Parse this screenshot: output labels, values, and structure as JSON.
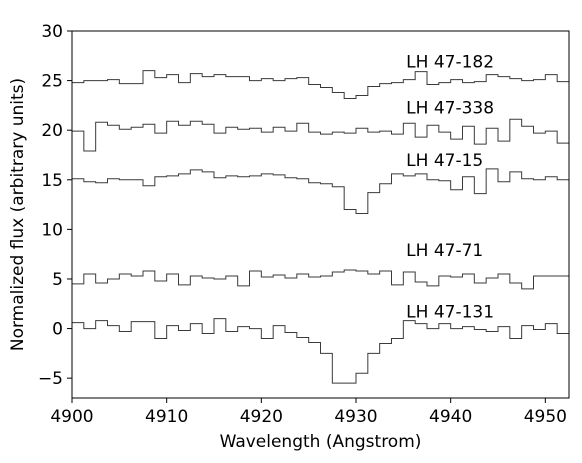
{
  "chart_data": {
    "type": "line",
    "step": true,
    "xlabel": "Wavelength (Angstrom)",
    "ylabel": "Normalized flux (arbitrary units)",
    "xlim": [
      4900,
      4952.5
    ],
    "ylim": [
      -7,
      30
    ],
    "xticks": [
      4900,
      4910,
      4920,
      4930,
      4940,
      4950
    ],
    "yticks": [
      -5,
      0,
      5,
      10,
      15,
      20,
      25,
      30
    ],
    "ytick_labels": [
      "−5",
      "0",
      "5",
      "10",
      "15",
      "20",
      "25",
      "30"
    ],
    "grid": false,
    "line_color": "#3a3a3a",
    "series": [
      {
        "name": "LH 47-182",
        "x0": 4900,
        "dx": 1.25,
        "values": [
          24.8,
          25.0,
          25.0,
          25.1,
          24.7,
          24.7,
          26.0,
          25.3,
          25.6,
          24.8,
          25.7,
          25.4,
          25.6,
          25.4,
          25.4,
          25.0,
          25.2,
          25.0,
          25.2,
          25.3,
          24.6,
          24.3,
          23.8,
          23.2,
          23.5,
          24.4,
          24.7,
          24.8,
          25.1,
          25.9,
          24.6,
          24.8,
          25.1,
          24.8,
          24.9,
          25.6,
          25.4,
          25.2,
          25.0,
          25.1,
          25.6,
          24.9,
          25.3,
          25.0
        ]
      },
      {
        "name": "LH 47-338",
        "x0": 4900,
        "dx": 1.25,
        "values": [
          19.9,
          17.9,
          20.8,
          20.5,
          20.1,
          20.3,
          20.6,
          19.7,
          20.9,
          20.5,
          20.9,
          20.6,
          19.7,
          20.3,
          20.1,
          20.2,
          19.8,
          20.3,
          19.9,
          20.7,
          19.8,
          19.6,
          19.8,
          19.7,
          20.2,
          19.8,
          19.9,
          19.6,
          20.7,
          19.3,
          20.5,
          19.8,
          19.1,
          20.4,
          18.6,
          20.2,
          18.9,
          21.1,
          20.4,
          19.7,
          19.9,
          18.7,
          20.8,
          19.9
        ]
      },
      {
        "name": "LH 47-15",
        "x0": 4900,
        "dx": 1.25,
        "values": [
          15.1,
          14.8,
          14.7,
          15.1,
          15.0,
          15.0,
          14.4,
          15.3,
          15.4,
          15.6,
          16.0,
          15.8,
          15.2,
          15.4,
          15.3,
          15.4,
          15.6,
          15.5,
          15.2,
          15.1,
          14.7,
          14.6,
          14.3,
          12.0,
          11.6,
          13.7,
          14.6,
          15.6,
          15.4,
          15.6,
          15.0,
          14.9,
          14.0,
          15.3,
          13.6,
          16.1,
          14.8,
          15.8,
          15.1,
          15.0,
          15.3,
          15.0,
          15.2,
          15.0
        ]
      },
      {
        "name": "LH 47-71",
        "x0": 4900,
        "dx": 1.25,
        "values": [
          4.5,
          5.5,
          4.6,
          5.0,
          5.5,
          5.3,
          5.8,
          4.8,
          5.5,
          4.4,
          5.3,
          5.1,
          5.0,
          5.3,
          4.3,
          5.8,
          5.2,
          5.4,
          5.1,
          5.5,
          5.2,
          5.3,
          5.7,
          5.9,
          5.8,
          5.5,
          5.8,
          4.4,
          5.7,
          4.7,
          4.3,
          5.3,
          5.2,
          5.5,
          4.6,
          5.1,
          5.5,
          4.6,
          4.0,
          5.3,
          5.3,
          5.3,
          5.3,
          5.3
        ]
      },
      {
        "name": "LH 47-131",
        "x0": 4900,
        "dx": 1.25,
        "values": [
          0.6,
          0.0,
          0.8,
          0.3,
          -0.3,
          0.7,
          0.7,
          -1.0,
          0.3,
          -0.2,
          0.5,
          -0.5,
          1.0,
          -0.3,
          0.2,
          0.0,
          -1.0,
          0.3,
          -0.4,
          -0.9,
          -1.4,
          -2.5,
          -5.5,
          -5.5,
          -4.5,
          -2.5,
          -1.5,
          -1.0,
          0.8,
          0.5,
          0.0,
          0.5,
          0.0,
          0.2,
          -0.1,
          -0.3,
          0.2,
          -1.0,
          0.3,
          -0.1,
          0.5,
          -0.5,
          0.8,
          0.0
        ]
      }
    ]
  }
}
